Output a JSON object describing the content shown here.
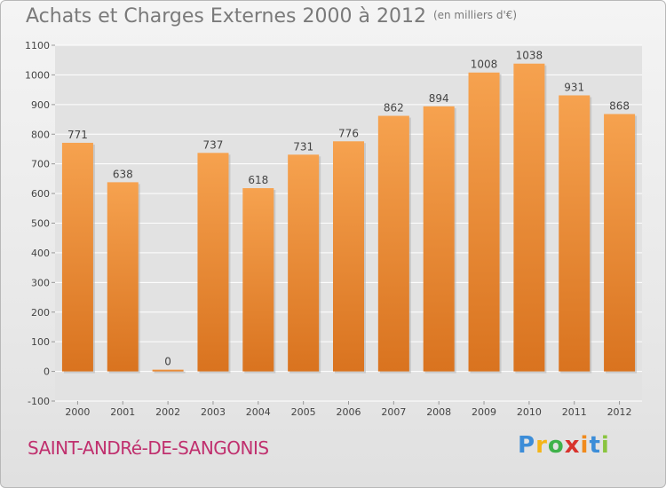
{
  "header": {
    "title": "Achats et Charges Externes 2000 à 2012",
    "subtitle": "(en milliers d'€)"
  },
  "footer": {
    "town": "SAINT-ANDRé-DE-SANGONIS",
    "logo": "Proxiti"
  },
  "colors": {
    "bar_top": "#f6a24f",
    "bar_bottom": "#d9731f",
    "grid": "#ffffff",
    "plot_bg": "#e2e2e2",
    "town": "#c0306e"
  },
  "chart_data": {
    "type": "bar",
    "title": "Achats et Charges Externes 2000 à 2012",
    "subtitle": "(en milliers d'€)",
    "xlabel": "",
    "ylabel": "",
    "categories": [
      "2000",
      "2001",
      "2002",
      "2003",
      "2004",
      "2005",
      "2006",
      "2007",
      "2008",
      "2009",
      "2010",
      "2011",
      "2012"
    ],
    "values": [
      771,
      638,
      0,
      737,
      618,
      731,
      776,
      862,
      894,
      1008,
      1038,
      931,
      868
    ],
    "ylim": [
      -100,
      1100
    ],
    "yticks": [
      -100,
      0,
      100,
      200,
      300,
      400,
      500,
      600,
      700,
      800,
      900,
      1000,
      1100
    ],
    "grid": "horizontal",
    "legend": "none"
  }
}
